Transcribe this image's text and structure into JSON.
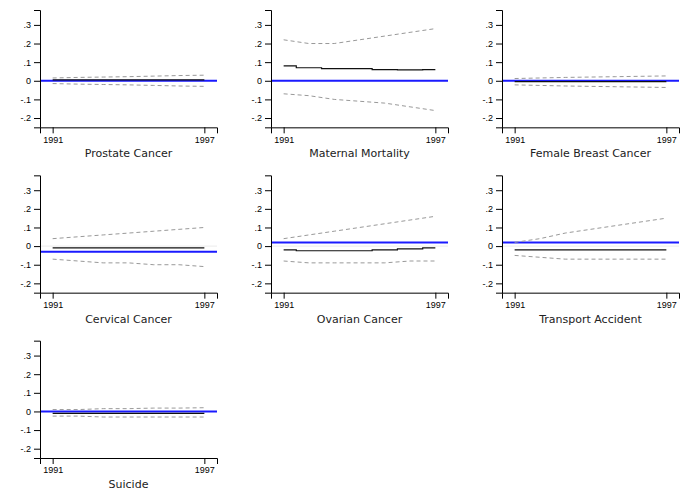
{
  "chart_data": [
    {
      "type": "line",
      "title": "Prostate Cancer",
      "x": [
        1991,
        1992,
        1993,
        1994,
        1995,
        1996,
        1997
      ],
      "reference_lines": [
        {
          "y": 0,
          "color": "#dddddd"
        },
        {
          "y": 0.0,
          "color": "#1a1aff"
        }
      ],
      "series": [
        {
          "type": "step",
          "color": "#111111",
          "line_style": "solid",
          "values": [
            0.005,
            0.005,
            0.005,
            0.005,
            0.005,
            0.005,
            0.005
          ]
        },
        {
          "type": "line",
          "color": "#999999",
          "line_style": "dashed",
          "values": [
            0.015,
            0.018,
            0.02,
            0.022,
            0.025,
            0.028,
            0.03
          ]
        },
        {
          "type": "line",
          "color": "#999999",
          "line_style": "dashed",
          "values": [
            -0.015,
            -0.018,
            -0.02,
            -0.022,
            -0.025,
            -0.028,
            -0.03
          ]
        }
      ],
      "xlim": [
        1990.5,
        1997.5
      ],
      "xticks": [
        1991,
        1997
      ],
      "ylim": [
        -0.25,
        0.38
      ],
      "yticks": [
        {
          "value": -0.2,
          "label": "-.2"
        },
        {
          "value": -0.1,
          "label": "-.1"
        },
        0,
        {
          "value": 0.1,
          "label": ".1"
        },
        {
          "value": 0.2,
          "label": ".2"
        },
        {
          "value": 0.3,
          "label": ".3"
        }
      ],
      "grid": false
    },
    {
      "type": "line",
      "title": "Maternal Mortality",
      "x": [
        1991,
        1992,
        1993,
        1994,
        1995,
        1996,
        1997
      ],
      "reference_lines": [
        {
          "y": 0,
          "color": "#dddddd"
        },
        {
          "y": 0.0,
          "color": "#1a1aff"
        }
      ],
      "series": [
        {
          "type": "step",
          "color": "#111111",
          "line_style": "solid",
          "values": [
            0.08,
            0.07,
            0.065,
            0.065,
            0.06,
            0.058,
            0.06
          ]
        },
        {
          "type": "line",
          "color": "#999999",
          "line_style": "dashed",
          "values": [
            0.22,
            0.2,
            0.2,
            0.22,
            0.24,
            0.26,
            0.28
          ]
        },
        {
          "type": "line",
          "color": "#999999",
          "line_style": "dashed",
          "values": [
            -0.07,
            -0.08,
            -0.1,
            -0.11,
            -0.12,
            -0.14,
            -0.16
          ]
        }
      ],
      "xlim": [
        1990.5,
        1997.5
      ],
      "xticks": [
        1991,
        1997
      ],
      "ylim": [
        -0.25,
        0.38
      ],
      "yticks": [
        {
          "value": -0.2,
          "label": "-.2"
        },
        {
          "value": -0.1,
          "label": "-.1"
        },
        0,
        {
          "value": 0.1,
          "label": ".1"
        },
        {
          "value": 0.2,
          "label": ".2"
        },
        {
          "value": 0.3,
          "label": ".3"
        }
      ],
      "grid": false
    },
    {
      "type": "line",
      "title": "Female Breast Cancer",
      "x": [
        1991,
        1992,
        1993,
        1994,
        1995,
        1996,
        1997
      ],
      "reference_lines": [
        {
          "y": 0,
          "color": "#dddddd"
        },
        {
          "y": 0.0,
          "color": "#1a1aff"
        }
      ],
      "series": [
        {
          "type": "step",
          "color": "#111111",
          "line_style": "solid",
          "values": [
            -0.005,
            -0.005,
            -0.005,
            -0.005,
            -0.005,
            -0.005,
            -0.005
          ]
        },
        {
          "type": "line",
          "color": "#999999",
          "line_style": "dashed",
          "values": [
            0.012,
            0.015,
            0.018,
            0.02,
            0.022,
            0.024,
            0.026
          ]
        },
        {
          "type": "line",
          "color": "#999999",
          "line_style": "dashed",
          "values": [
            -0.022,
            -0.025,
            -0.028,
            -0.03,
            -0.032,
            -0.034,
            -0.036
          ]
        }
      ],
      "xlim": [
        1990.5,
        1997.5
      ],
      "xticks": [
        1991,
        1997
      ],
      "ylim": [
        -0.25,
        0.38
      ],
      "yticks": [
        {
          "value": -0.2,
          "label": "-.2"
        },
        {
          "value": -0.1,
          "label": "-.1"
        },
        0,
        {
          "value": 0.1,
          "label": ".1"
        },
        {
          "value": 0.2,
          "label": ".2"
        },
        {
          "value": 0.3,
          "label": ".3"
        }
      ],
      "grid": false
    },
    {
      "type": "line",
      "title": "Cervical Cancer",
      "x": [
        1991,
        1992,
        1993,
        1994,
        1995,
        1996,
        1997
      ],
      "reference_lines": [
        {
          "y": 0,
          "color": "#dddddd"
        },
        {
          "y": -0.03,
          "color": "#1a1aff"
        }
      ],
      "series": [
        {
          "type": "step",
          "color": "#111111",
          "line_style": "solid",
          "values": [
            -0.01,
            -0.01,
            -0.01,
            -0.01,
            -0.01,
            -0.01,
            -0.01
          ]
        },
        {
          "type": "line",
          "color": "#999999",
          "line_style": "dashed",
          "values": [
            0.04,
            0.05,
            0.06,
            0.07,
            0.08,
            0.09,
            0.1
          ]
        },
        {
          "type": "line",
          "color": "#999999",
          "line_style": "dashed",
          "values": [
            -0.07,
            -0.08,
            -0.09,
            -0.09,
            -0.1,
            -0.1,
            -0.11
          ]
        }
      ],
      "xlim": [
        1990.5,
        1997.5
      ],
      "xticks": [
        1991,
        1997
      ],
      "ylim": [
        -0.25,
        0.38
      ],
      "yticks": [
        {
          "value": -0.2,
          "label": "-.2"
        },
        {
          "value": -0.1,
          "label": "-.1"
        },
        0,
        {
          "value": 0.1,
          "label": ".1"
        },
        {
          "value": 0.2,
          "label": ".2"
        },
        {
          "value": 0.3,
          "label": ".3"
        }
      ],
      "grid": false
    },
    {
      "type": "line",
      "title": "Ovarian Cancer",
      "x": [
        1991,
        1992,
        1993,
        1994,
        1995,
        1996,
        1997
      ],
      "reference_lines": [
        {
          "y": 0,
          "color": "#dddddd"
        },
        {
          "y": 0.02,
          "color": "#1a1aff"
        }
      ],
      "series": [
        {
          "type": "step",
          "color": "#111111",
          "line_style": "solid",
          "values": [
            -0.02,
            -0.025,
            -0.025,
            -0.025,
            -0.02,
            -0.015,
            -0.01
          ]
        },
        {
          "type": "line",
          "color": "#999999",
          "line_style": "dashed",
          "values": [
            0.04,
            0.06,
            0.08,
            0.1,
            0.12,
            0.14,
            0.16
          ]
        },
        {
          "type": "line",
          "color": "#999999",
          "line_style": "dashed",
          "values": [
            -0.08,
            -0.09,
            -0.09,
            -0.09,
            -0.09,
            -0.08,
            -0.08
          ]
        }
      ],
      "xlim": [
        1990.5,
        1997.5
      ],
      "xticks": [
        1991,
        1997
      ],
      "ylim": [
        -0.25,
        0.38
      ],
      "yticks": [
        {
          "value": -0.2,
          "label": "-.2"
        },
        {
          "value": -0.1,
          "label": "-.1"
        },
        0,
        {
          "value": 0.1,
          "label": ".1"
        },
        {
          "value": 0.2,
          "label": ".2"
        },
        {
          "value": 0.3,
          "label": ".3"
        }
      ],
      "grid": false
    },
    {
      "type": "line",
      "title": "Transport Accident",
      "x": [
        1991,
        1992,
        1993,
        1994,
        1995,
        1996,
        1997
      ],
      "reference_lines": [
        {
          "y": 0,
          "color": "#dddddd"
        },
        {
          "y": 0.02,
          "color": "#1a1aff"
        }
      ],
      "series": [
        {
          "type": "step",
          "color": "#111111",
          "line_style": "solid",
          "values": [
            -0.02,
            -0.02,
            -0.02,
            -0.02,
            -0.02,
            -0.02,
            -0.02
          ]
        },
        {
          "type": "line",
          "color": "#999999",
          "line_style": "dashed",
          "values": [
            0.02,
            0.04,
            0.07,
            0.09,
            0.11,
            0.13,
            0.15
          ]
        },
        {
          "type": "line",
          "color": "#999999",
          "line_style": "dashed",
          "values": [
            -0.05,
            -0.06,
            -0.07,
            -0.07,
            -0.07,
            -0.07,
            -0.07
          ]
        }
      ],
      "xlim": [
        1990.5,
        1997.5
      ],
      "xticks": [
        1991,
        1997
      ],
      "ylim": [
        -0.25,
        0.38
      ],
      "yticks": [
        {
          "value": -0.2,
          "label": "-.2"
        },
        {
          "value": -0.1,
          "label": "-.1"
        },
        0,
        {
          "value": 0.1,
          "label": ".1"
        },
        {
          "value": 0.2,
          "label": ".2"
        },
        {
          "value": 0.3,
          "label": ".3"
        }
      ],
      "grid": false
    },
    {
      "type": "line",
      "title": "Suicide",
      "x": [
        1991,
        1992,
        1993,
        1994,
        1995,
        1996,
        1997
      ],
      "reference_lines": [
        {
          "y": 0,
          "color": "#dddddd"
        },
        {
          "y": 0.0,
          "color": "#1a1aff"
        }
      ],
      "series": [
        {
          "type": "step",
          "color": "#111111",
          "line_style": "solid",
          "values": [
            -0.01,
            -0.01,
            -0.01,
            -0.01,
            -0.01,
            -0.01,
            -0.01
          ]
        },
        {
          "type": "line",
          "color": "#999999",
          "line_style": "dashed",
          "values": [
            0.01,
            0.01,
            0.015,
            0.015,
            0.018,
            0.018,
            0.02
          ]
        },
        {
          "type": "line",
          "color": "#999999",
          "line_style": "dashed",
          "values": [
            -0.025,
            -0.025,
            -0.03,
            -0.03,
            -0.03,
            -0.03,
            -0.03
          ]
        }
      ],
      "xlim": [
        1990.5,
        1997.5
      ],
      "xticks": [
        1991,
        1997
      ],
      "ylim": [
        -0.25,
        0.38
      ],
      "yticks": [
        {
          "value": -0.2,
          "label": "-.2"
        },
        {
          "value": -0.1,
          "label": "-.1"
        },
        0,
        {
          "value": 0.1,
          "label": ".1"
        },
        {
          "value": 0.2,
          "label": ".2"
        },
        {
          "value": 0.3,
          "label": ".3"
        }
      ],
      "grid": false
    }
  ]
}
